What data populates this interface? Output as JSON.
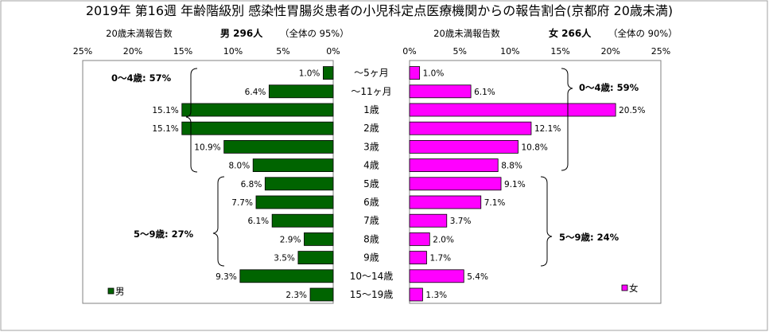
{
  "title": "2019年 第16週 年齢階級別 感染性胃腸炎患者の小児科定点医療機関からの報告割合(京都府 20歳未満)",
  "colors": {
    "male": "#006400",
    "female": "#ff00ff",
    "frame": "#808080",
    "background": "#ffffff"
  },
  "male_header": {
    "label": "20歳未満報告数",
    "count_text": "男 296人",
    "share_text": "（全体の 95%）"
  },
  "female_header": {
    "label": "20歳未満報告数",
    "count_text": "女 266人",
    "share_text": "（全体の 90%）"
  },
  "male_ticks": [
    "25%",
    "20%",
    "15%",
    "10%",
    "5%",
    "0%"
  ],
  "female_ticks": [
    "0%",
    "5%",
    "10%",
    "15%",
    "20%",
    "25%"
  ],
  "legend": {
    "male": "男",
    "female": "女"
  },
  "brackets": {
    "male_0_4": "0～4歳: 57%",
    "male_5_9": "5～9歳: 27%",
    "female_0_4": "0～4歳: 59%",
    "female_5_9": "5～9歳: 24%"
  },
  "chart_data": {
    "type": "bar",
    "orientation": "horizontal",
    "layout": "back-to-back (population pyramid)",
    "categories": [
      "～5ヶ月",
      "～11ヶ月",
      "1歳",
      "2歳",
      "3歳",
      "4歳",
      "5歳",
      "6歳",
      "7歳",
      "8歳",
      "9歳",
      "10～14歳",
      "15～19歳"
    ],
    "xlim": [
      0,
      25
    ],
    "unit": "%",
    "series": [
      {
        "name": "男",
        "color": "#006400",
        "values": [
          1.0,
          6.4,
          15.1,
          15.1,
          10.9,
          8.0,
          6.8,
          7.7,
          6.1,
          2.9,
          3.5,
          9.3,
          2.3
        ]
      },
      {
        "name": "女",
        "color": "#ff00ff",
        "values": [
          1.0,
          6.1,
          20.5,
          12.1,
          10.8,
          8.8,
          9.1,
          7.1,
          3.7,
          2.0,
          1.7,
          5.4,
          1.3
        ]
      }
    ],
    "value_labels": {
      "男": [
        "1.0%",
        "6.4%",
        "15.1%",
        "15.1%",
        "10.9%",
        "8.0%",
        "6.8%",
        "7.7%",
        "6.1%",
        "2.9%",
        "3.5%",
        "9.3%",
        "2.3%"
      ],
      "女": [
        "1.0%",
        "6.1%",
        "20.5%",
        "12.1%",
        "10.8%",
        "8.8%",
        "9.1%",
        "7.1%",
        "3.7%",
        "2.0%",
        "1.7%",
        "5.4%",
        "1.3%"
      ]
    },
    "grid": false,
    "legend_position": "bottom-left of each panel"
  }
}
